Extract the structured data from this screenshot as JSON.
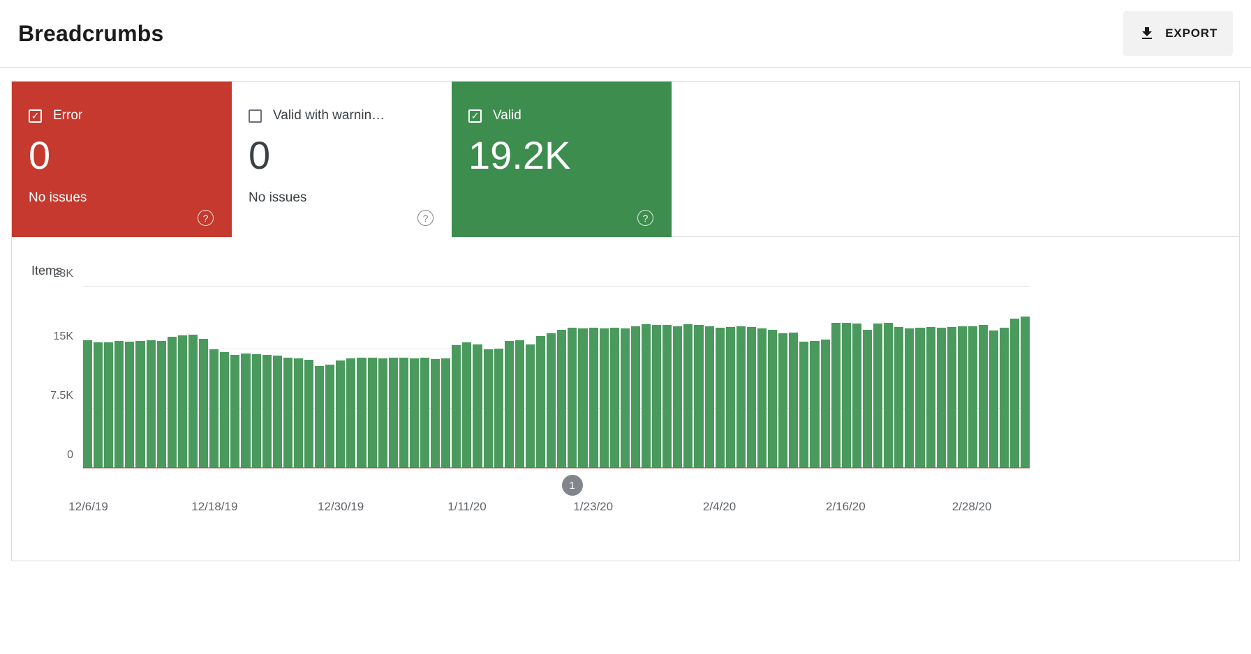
{
  "header": {
    "title": "Breadcrumbs",
    "export_label": "EXPORT",
    "export_icon": "download-icon"
  },
  "cards": [
    {
      "id": "error",
      "label": "Error",
      "value": "0",
      "sub": "No issues",
      "checked": true,
      "color": "#c5392e",
      "help_icon": "help-icon"
    },
    {
      "id": "valid-with-warnings",
      "label": "Valid with warnin…",
      "value": "0",
      "sub": "No issues",
      "checked": false,
      "color": "#ffffff",
      "help_icon": "help-icon"
    },
    {
      "id": "valid",
      "label": "Valid",
      "value": "19.2K",
      "sub": "",
      "checked": true,
      "color": "#3c8d4e",
      "help_icon": "help-icon"
    }
  ],
  "chart_data": {
    "type": "bar",
    "title": "Items",
    "ylabel": "Items",
    "ylim": [
      0,
      23000
    ],
    "bar_color": "#4a9a5d",
    "error_line_color": "#c5392e",
    "error_line_value": 0,
    "grid": true,
    "yticks": [
      {
        "value": 0,
        "label": "0"
      },
      {
        "value": 7500,
        "label": "7.5K"
      },
      {
        "value": 15000,
        "label": "15K"
      },
      {
        "value": 23000,
        "label": "23K"
      }
    ],
    "xticks": [
      {
        "index": 0,
        "label": "12/6/19"
      },
      {
        "index": 12,
        "label": "12/18/19"
      },
      {
        "index": 24,
        "label": "12/30/19"
      },
      {
        "index": 36,
        "label": "1/11/20"
      },
      {
        "index": 48,
        "label": "1/23/20"
      },
      {
        "index": 60,
        "label": "2/4/20"
      },
      {
        "index": 72,
        "label": "2/16/20"
      },
      {
        "index": 84,
        "label": "2/28/20"
      }
    ],
    "annotation": {
      "index": 46,
      "label": "1"
    },
    "categories": [
      "12/6/19",
      "12/7/19",
      "12/8/19",
      "12/9/19",
      "12/10/19",
      "12/11/19",
      "12/12/19",
      "12/13/19",
      "12/14/19",
      "12/15/19",
      "12/16/19",
      "12/17/19",
      "12/18/19",
      "12/19/19",
      "12/20/19",
      "12/21/19",
      "12/22/19",
      "12/23/19",
      "12/24/19",
      "12/25/19",
      "12/26/19",
      "12/27/19",
      "12/28/19",
      "12/29/19",
      "12/30/19",
      "12/31/19",
      "1/1/20",
      "1/2/20",
      "1/3/20",
      "1/4/20",
      "1/5/20",
      "1/6/20",
      "1/7/20",
      "1/8/20",
      "1/9/20",
      "1/10/20",
      "1/11/20",
      "1/12/20",
      "1/13/20",
      "1/14/20",
      "1/15/20",
      "1/16/20",
      "1/17/20",
      "1/18/20",
      "1/19/20",
      "1/20/20",
      "1/21/20",
      "1/22/20",
      "1/23/20",
      "1/24/20",
      "1/25/20",
      "1/26/20",
      "1/27/20",
      "1/28/20",
      "1/29/20",
      "1/30/20",
      "1/31/20",
      "2/1/20",
      "2/2/20",
      "2/3/20",
      "2/4/20",
      "2/5/20",
      "2/6/20",
      "2/7/20",
      "2/8/20",
      "2/9/20",
      "2/10/20",
      "2/11/20",
      "2/12/20",
      "2/13/20",
      "2/14/20",
      "2/15/20",
      "2/16/20",
      "2/17/20",
      "2/18/20",
      "2/19/20",
      "2/20/20",
      "2/21/20",
      "2/22/20",
      "2/23/20",
      "2/24/20",
      "2/25/20",
      "2/26/20",
      "2/27/20",
      "2/28/20",
      "2/29/20",
      "3/1/20",
      "3/2/20",
      "3/3/20",
      "3/4/20"
    ],
    "values": [
      16200,
      15900,
      15900,
      16100,
      16000,
      16100,
      16200,
      16100,
      16600,
      16800,
      16900,
      16400,
      15000,
      14700,
      14300,
      14500,
      14400,
      14300,
      14200,
      14000,
      13900,
      13700,
      12900,
      13100,
      13600,
      13900,
      14000,
      14000,
      13900,
      14000,
      14000,
      13900,
      14000,
      13800,
      13900,
      15600,
      15900,
      15700,
      15000,
      15100,
      16100,
      16200,
      15700,
      16700,
      17100,
      17500,
      17800,
      17700,
      17800,
      17700,
      17800,
      17700,
      18000,
      18200,
      18100,
      18100,
      18000,
      18200,
      18100,
      18000,
      17800,
      17900,
      18000,
      17900,
      17700,
      17500,
      17100,
      17200,
      16000,
      16100,
      16300,
      18400,
      18400,
      18300,
      17500,
      18300,
      18400,
      17900,
      17700,
      17800,
      17900,
      17800,
      17900,
      18000,
      18000,
      18100,
      17400,
      17800,
      18900,
      19200
    ]
  }
}
